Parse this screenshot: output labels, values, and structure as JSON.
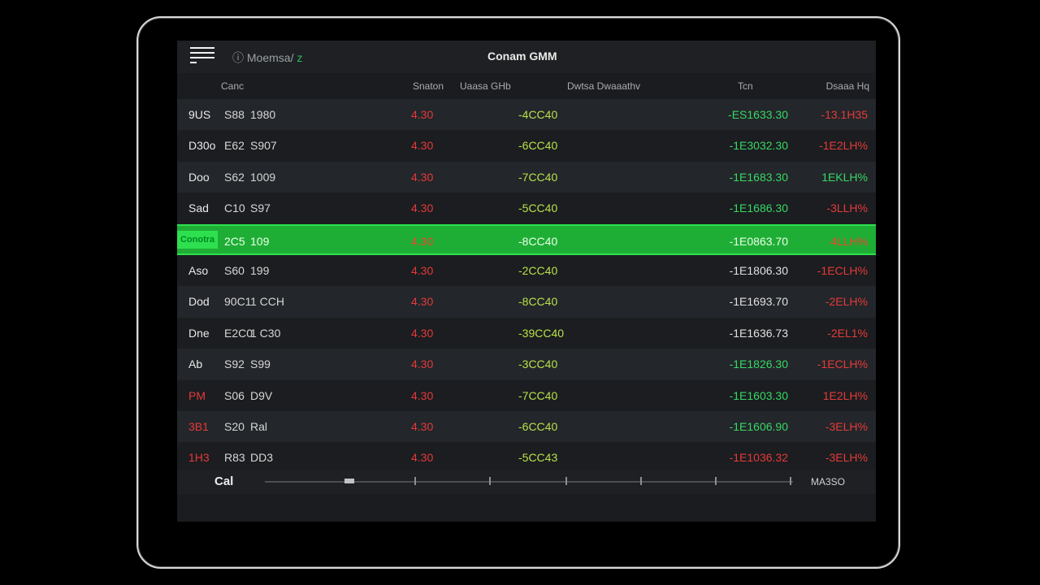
{
  "topbar": {
    "crumb": "ⓘ Moemsa/",
    "crumb_accent": "z",
    "title": "Conam GMM"
  },
  "columns": [
    "Canc",
    "Snaton",
    "Uaasa GHb",
    "Dwtsa Dwaaathv",
    "Tcn",
    "Dsaaa Hq"
  ],
  "rows": [
    {
      "c0": "9US",
      "c1": "S88",
      "c2": "1980",
      "c3": "4.30",
      "c4": "-4CC40",
      "c5": "-ES1633.30",
      "c6": "-13.1H35"
    },
    {
      "c0": "D30o",
      "c1": "E62",
      "c2": "S907",
      "c3": "4.30",
      "c4": "-6CC40",
      "c5": "-1E3032.30",
      "c6": "-1E2LH%"
    },
    {
      "c0": "Doo",
      "c1": "S62",
      "c2": "1009",
      "c3": "4.30",
      "c4": "-7CC40",
      "c5": "-1E1683.30",
      "c6": "1EKLH%"
    },
    {
      "c0": "Sad",
      "c1": "C10",
      "c2": "S97",
      "c3": "4.30",
      "c4": "-5CC40",
      "c5": "-1E1686.30",
      "c6": "-3LLH%"
    },
    {
      "c0": "",
      "c1": "2C5",
      "c2": "109",
      "c3": "4.30",
      "c4": "-8CC40",
      "c5": "-1E0863.70",
      "c6": "4LLH%",
      "badge": "Conotra"
    },
    {
      "c0": "Aso",
      "c1": "S60",
      "c2": "199",
      "c3": "4.30",
      "c4": "-2CC40",
      "c5": "-1E1806.30",
      "c6": "-1ECLH%"
    },
    {
      "c0": "Dod",
      "c1": "90C1",
      "c2": "1 CCH",
      "c3": "4.30",
      "c4": "-8CC40",
      "c5": "-1E1693.70",
      "c6": "-2ELH%"
    },
    {
      "c0": "Dne",
      "c1": "E2C0",
      "c2": "1 C30",
      "c3": "4.30",
      "c4": "-39CC40",
      "c5": "-1E1636.73",
      "c6": "-2EL1%"
    },
    {
      "c0": "Ab",
      "c1": "S92",
      "c2": "S99",
      "c3": "4.30",
      "c4": "-3CC40",
      "c5": "-1E1826.30",
      "c6": "-1ECLH%"
    },
    {
      "c0": "PM",
      "c1": "S06",
      "c2": "D9V",
      "c3": "4.30",
      "c4": "-7CC40",
      "c5": "-1E1603.30",
      "c6": "1E2LH%"
    },
    {
      "c0": "3B1",
      "c1": "S20",
      "c2": "Ral",
      "c3": "4.30",
      "c4": "-6CC40",
      "c5": "-1E1606.90",
      "c6": "-3ELH%"
    },
    {
      "c0": "1H3",
      "c1": "R83",
      "c2": "DD3",
      "c3": "4.30",
      "c4": "-5CC43",
      "c5": "-1E1036.32",
      "c6": "-3ELH%"
    }
  ],
  "footer": {
    "label": "Cal",
    "right": "MA3SO",
    "position": 0.15
  },
  "colors": {
    "selected_row": "#1fae35",
    "positive": "#37d865",
    "negative": "#e53a3a",
    "accent": "#b8e04a"
  }
}
